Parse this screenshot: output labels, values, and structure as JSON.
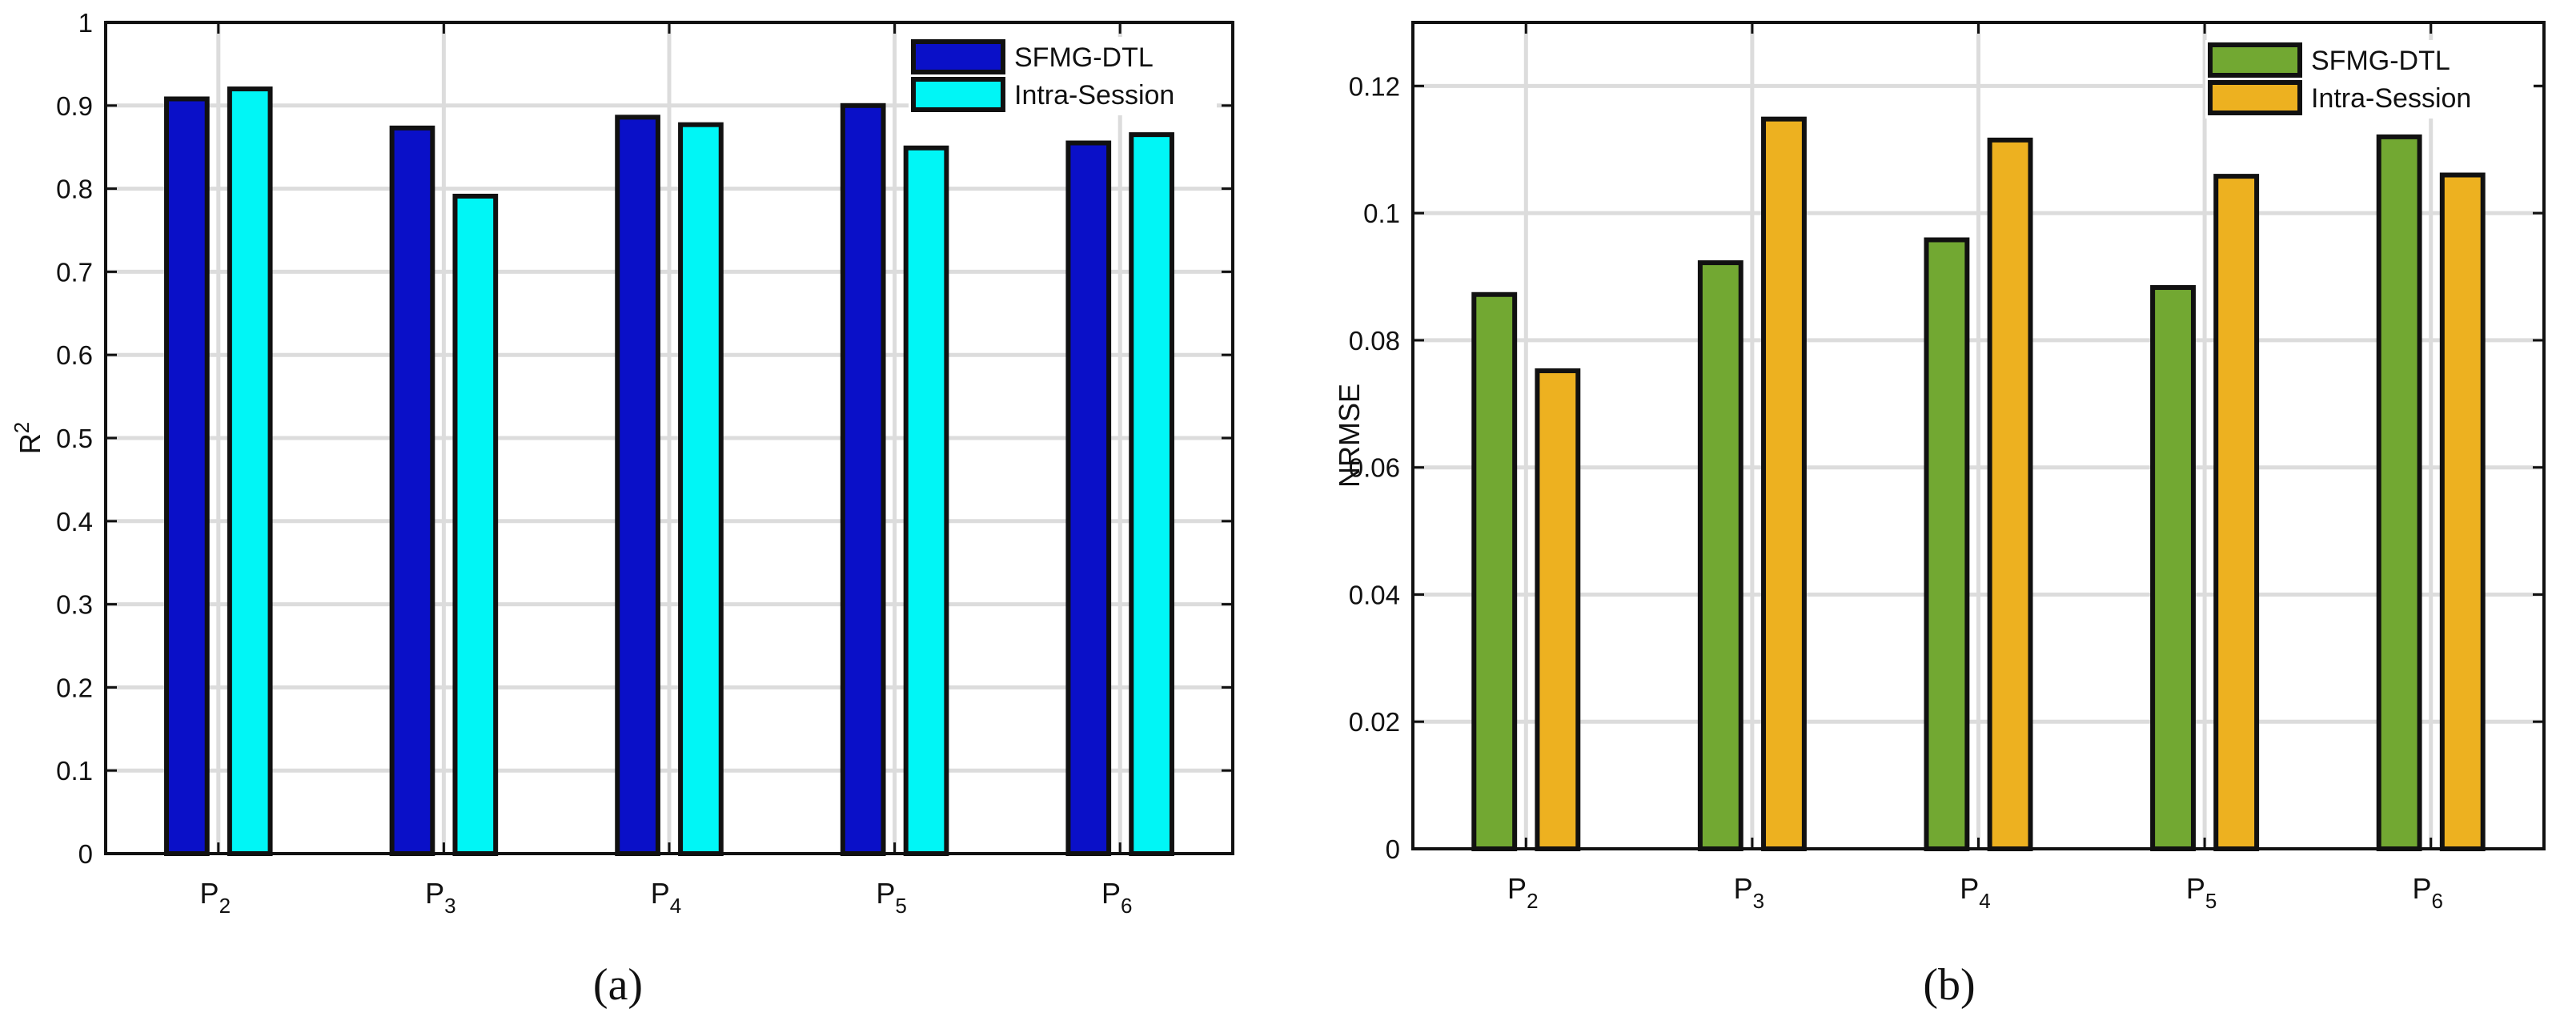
{
  "chart_data": [
    {
      "type": "bar",
      "caption": "(a)",
      "ylabel": "R",
      "ylabel_sup": "2",
      "ylim": [
        0,
        1
      ],
      "yticks": [
        0,
        0.1,
        0.2,
        0.3,
        0.4,
        0.5,
        0.6,
        0.7,
        0.8,
        0.9,
        1
      ],
      "ytick_labels": [
        "0",
        "0.1",
        "0.2",
        "0.3",
        "0.4",
        "0.5",
        "0.6",
        "0.7",
        "0.8",
        "0.9",
        "1"
      ],
      "grid": true,
      "legend_position": "top-right",
      "categories": [
        {
          "base": "P",
          "sub": "2"
        },
        {
          "base": "P",
          "sub": "3"
        },
        {
          "base": "P",
          "sub": "4"
        },
        {
          "base": "P",
          "sub": "5"
        },
        {
          "base": "P",
          "sub": "6"
        }
      ],
      "series": [
        {
          "name": "SFMG-DTL",
          "color": "#0a10c8",
          "values": [
            0.908,
            0.873,
            0.886,
            0.9,
            0.855
          ]
        },
        {
          "name": "Intra-Session",
          "color": "#00f6f6",
          "values": [
            0.92,
            0.791,
            0.877,
            0.849,
            0.865
          ]
        }
      ]
    },
    {
      "type": "bar",
      "caption": "(b)",
      "ylabel": "NRMSE",
      "ylabel_sup": "",
      "ylim": [
        0,
        0.13
      ],
      "yticks": [
        0,
        0.02,
        0.04,
        0.06,
        0.08,
        0.1,
        0.12
      ],
      "ytick_labels": [
        "0",
        "0.02",
        "0.04",
        "0.06",
        "0.08",
        "0.1",
        "0.12"
      ],
      "grid": true,
      "legend_position": "top-right",
      "categories": [
        {
          "base": "P",
          "sub": "2"
        },
        {
          "base": "P",
          "sub": "3"
        },
        {
          "base": "P",
          "sub": "4"
        },
        {
          "base": "P",
          "sub": "5"
        },
        {
          "base": "P",
          "sub": "6"
        }
      ],
      "series": [
        {
          "name": "SFMG-DTL",
          "color": "#72a832",
          "values": [
            0.0872,
            0.0922,
            0.0958,
            0.0883,
            0.112
          ]
        },
        {
          "name": "Intra-Session",
          "color": "#edb120",
          "values": [
            0.0752,
            0.1148,
            0.1115,
            0.1058,
            0.106
          ]
        }
      ]
    }
  ]
}
